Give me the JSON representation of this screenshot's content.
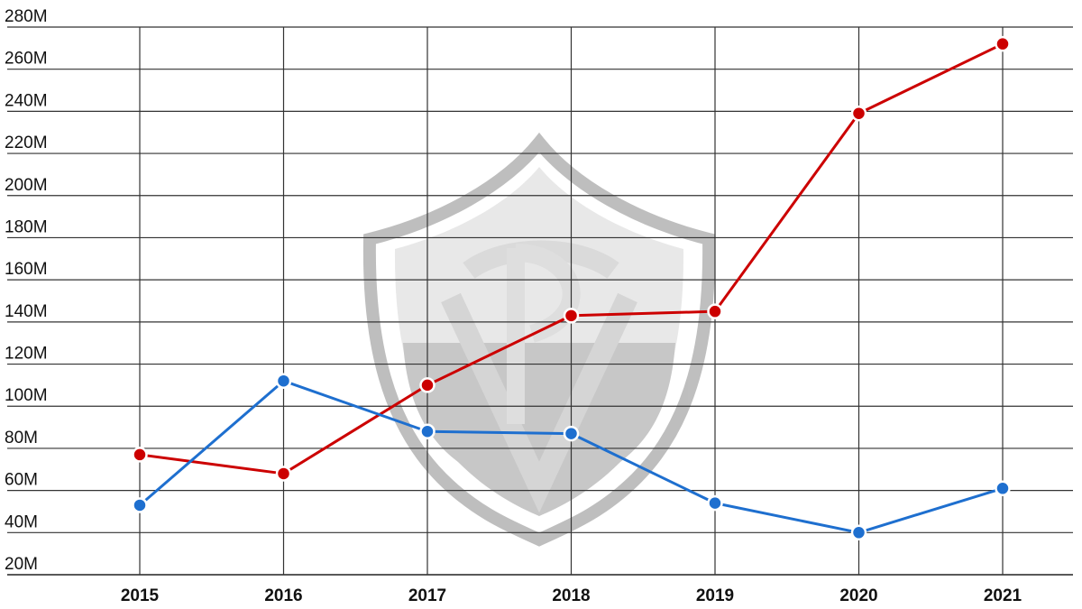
{
  "chart_data": {
    "type": "line",
    "title": "",
    "xlabel": "",
    "ylabel": "",
    "x": [
      "2015",
      "2016",
      "2017",
      "2018",
      "2019",
      "2020",
      "2021"
    ],
    "y_ticks": [
      "20M",
      "40M",
      "60M",
      "80M",
      "100M",
      "120M",
      "140M",
      "160M",
      "180M",
      "200M",
      "220M",
      "240M",
      "260M",
      "280M"
    ],
    "ylim": [
      20,
      280
    ],
    "grid": true,
    "legend": "none",
    "series": [
      {
        "color": "#cc0000",
        "values": [
          77,
          68,
          110,
          143,
          145,
          239,
          272
        ]
      },
      {
        "color": "#1e6fcf",
        "values": [
          53,
          112,
          88,
          87,
          54,
          40,
          61
        ]
      }
    ]
  },
  "watermark": {
    "icon": "club-crest-shield-icon"
  }
}
